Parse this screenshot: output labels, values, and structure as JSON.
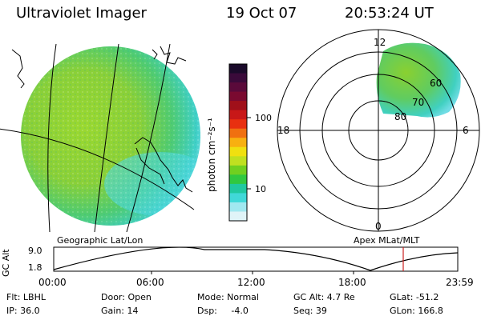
{
  "header": {
    "instrument": "Ultraviolet Imager",
    "date": "19 Oct 07",
    "time": "20:53:24 UT"
  },
  "colorbar": {
    "label": "photon cm⁻²s⁻¹",
    "ticks": [
      "100",
      "10"
    ],
    "colors": [
      "#1a0a2a",
      "#3a0a3a",
      "#5a0a3a",
      "#7a0a30",
      "#a0101a",
      "#c81818",
      "#e83010",
      "#f07010",
      "#f8b010",
      "#f0e010",
      "#c0e020",
      "#70d020",
      "#30c840",
      "#20c8a0",
      "#40d8d8",
      "#a0e8f0",
      "#e0f4f8"
    ]
  },
  "geo_panel": {
    "label": "Geographic Lat/Lon"
  },
  "polar_panel": {
    "label": "Apex MLat/MLT",
    "mlt_labels": [
      "12",
      "18",
      "6",
      "0"
    ],
    "lat_labels": [
      "60",
      "70",
      "80"
    ]
  },
  "altitude_plot": {
    "ylabel": "GC Alt",
    "y_ticks": [
      "9.0",
      "1.8"
    ],
    "x_ticks": [
      "00:00",
      "06:00",
      "12:00",
      "18:00",
      "23:59"
    ],
    "marker_color": "#cc2222"
  },
  "info": {
    "filter": "Flt: LBHL",
    "door": "Door: Open",
    "mode": "Mode: Normal",
    "gc_alt": "GC Alt: 4.7 Re",
    "glat": "GLat: -51.2",
    "ip": "IP: 36.0",
    "gain": "Gain: 14",
    "dsp": "Dsp:     -4.0",
    "seq": "Seq: 39",
    "glon": "GLon: 166.8"
  }
}
